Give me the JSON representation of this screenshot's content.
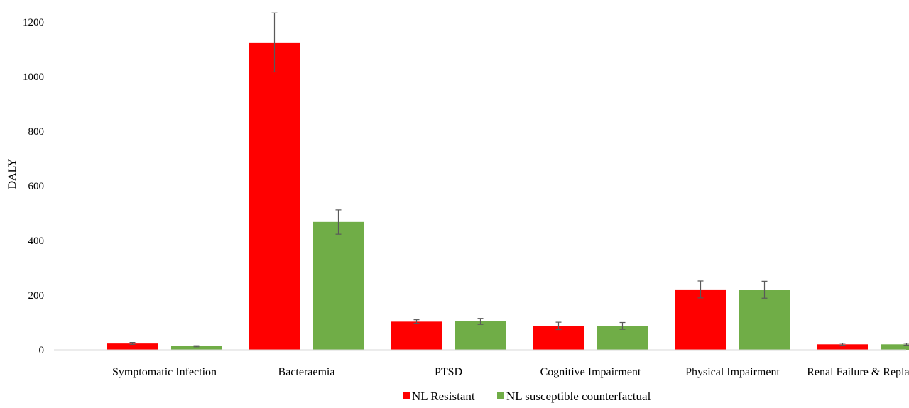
{
  "chart_data": {
    "type": "bar",
    "title": "",
    "xlabel": "",
    "ylabel": "DALY",
    "ylim": [
      0,
      1200
    ],
    "yticks": [
      0,
      200,
      400,
      600,
      800,
      1000,
      1200
    ],
    "grid": false,
    "legend_position": "bottom",
    "categories": [
      "Symptomatic Infection",
      "Bacteraemia",
      "PTSD",
      "Cognitive Impairment",
      "Physical Impairment",
      "Renal Failure & Replacement"
    ],
    "series": [
      {
        "name": "NL Resistant",
        "color": "#ff0000",
        "values": [
          23,
          1125,
          103,
          87,
          221,
          20
        ],
        "error_low": [
          20,
          1017,
          97,
          74,
          190,
          17
        ],
        "error_high": [
          27,
          1233,
          110,
          101,
          252,
          24
        ]
      },
      {
        "name": "NL susceptible counterfactual",
        "color": "#70ad47",
        "values": [
          13,
          468,
          104,
          87,
          220,
          20
        ],
        "error_low": [
          11,
          423,
          93,
          75,
          189,
          17
        ],
        "error_high": [
          15,
          512,
          115,
          100,
          251,
          24
        ]
      }
    ]
  }
}
